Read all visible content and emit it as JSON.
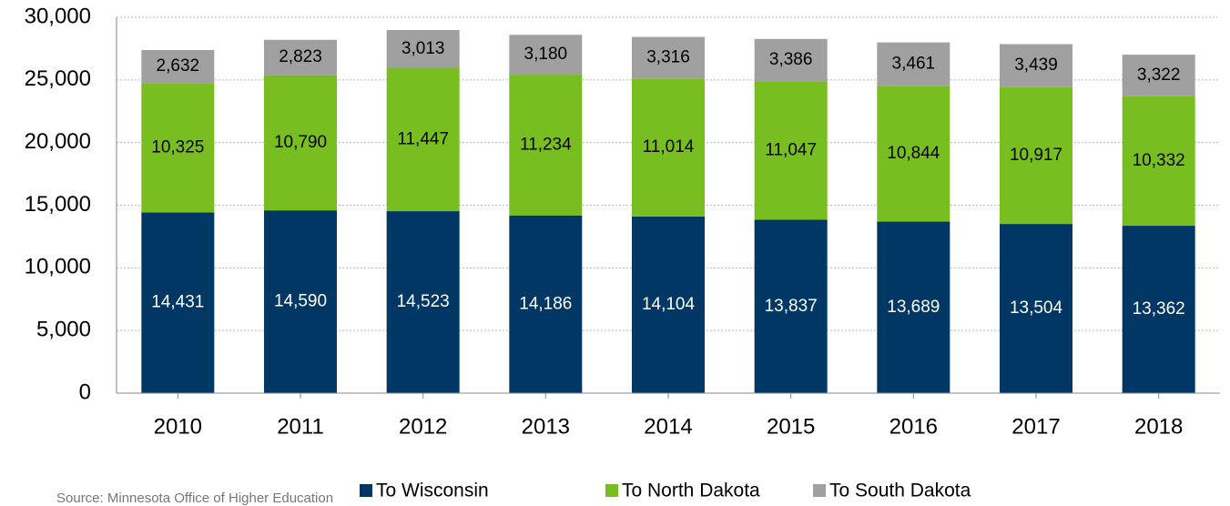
{
  "chart_data": {
    "type": "stacked_bar",
    "categories": [
      "2010",
      "2011",
      "2012",
      "2013",
      "2014",
      "2015",
      "2016",
      "2017",
      "2018"
    ],
    "series": [
      {
        "name": "To Wisconsin",
        "color": "#003764",
        "values": [
          14431,
          14590,
          14523,
          14186,
          14104,
          13837,
          13689,
          13504,
          13362
        ],
        "value_labels": [
          "14,431",
          "14,590",
          "14,523",
          "14,186",
          "14,104",
          "13,837",
          "13,689",
          "13,504",
          "13,362"
        ]
      },
      {
        "name": "To North Dakota",
        "color": "#78be21",
        "values": [
          10325,
          10790,
          11447,
          11234,
          11014,
          11047,
          10844,
          10917,
          10332
        ],
        "value_labels": [
          "10,325",
          "10,790",
          "11,447",
          "11,234",
          "11,014",
          "11,047",
          "10,844",
          "10,917",
          "10,332"
        ]
      },
      {
        "name": "To South Dakota",
        "color": "#a0a0a0",
        "values": [
          2632,
          2823,
          3013,
          3180,
          3316,
          3386,
          3461,
          3439,
          3322
        ],
        "value_labels": [
          "2,632",
          "2,823",
          "3,013",
          "3,180",
          "3,316",
          "3,386",
          "3,461",
          "3,439",
          "3,322"
        ]
      }
    ],
    "ylim": [
      0,
      30000
    ],
    "yticks": [
      0,
      {
        "value": 5000,
        "label": "5,000"
      },
      {
        "value": 10000,
        "label": "10,000"
      },
      {
        "value": 15000,
        "label": "15,000"
      },
      {
        "value": 20000,
        "label": "20,000"
      },
      {
        "value": 25000,
        "label": "25,000"
      },
      {
        "value": 30000,
        "label": "30,000"
      }
    ],
    "grid": true,
    "legend": "bottom",
    "source": "Source: Minnesota Office of Higher Education"
  }
}
